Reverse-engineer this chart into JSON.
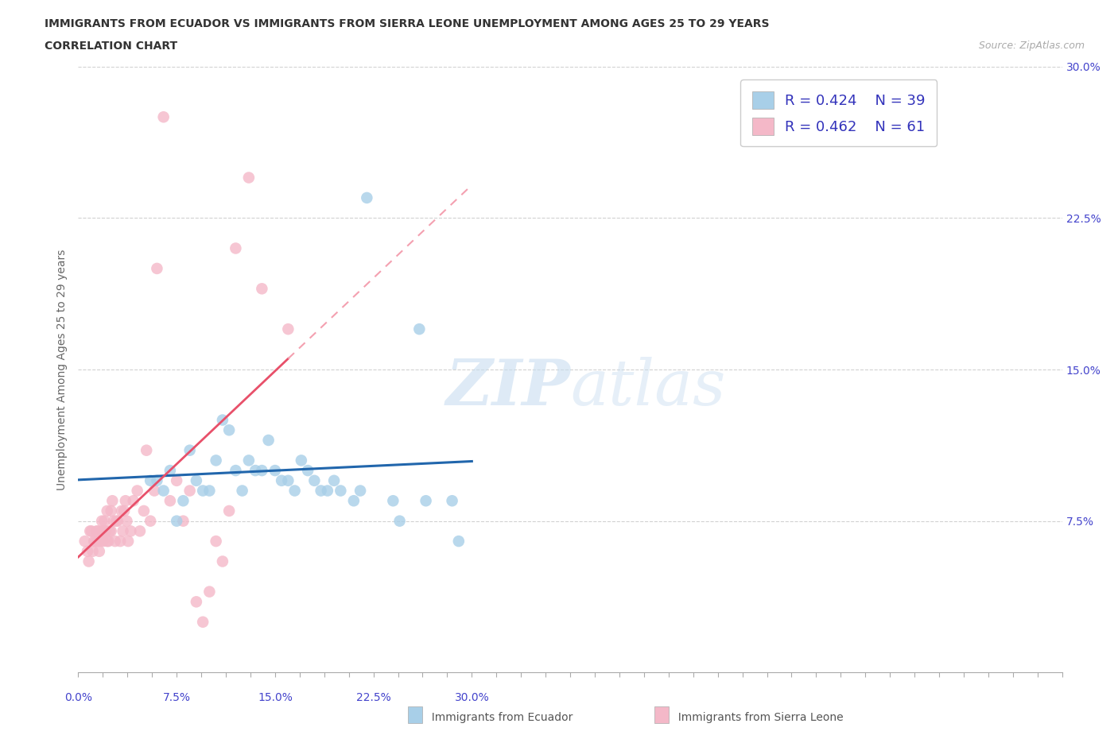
{
  "title_line1": "IMMIGRANTS FROM ECUADOR VS IMMIGRANTS FROM SIERRA LEONE UNEMPLOYMENT AMONG AGES 25 TO 29 YEARS",
  "title_line2": "CORRELATION CHART",
  "source_text": "Source: ZipAtlas.com",
  "ylabel": "Unemployment Among Ages 25 to 29 years",
  "xlim": [
    0.0,
    0.3
  ],
  "ylim": [
    0.0,
    0.3
  ],
  "xtick_labels": [
    "0.0%",
    "",
    "",
    "",
    "",
    "",
    "",
    "",
    "7.5%",
    "",
    "",
    "",
    "",
    "",
    "",
    "",
    "15.0%",
    "",
    "",
    "",
    "",
    "",
    "",
    "",
    "22.5%",
    "",
    "",
    "",
    "",
    "",
    "",
    "",
    "30.0%"
  ],
  "xtick_positions": [
    0.0,
    0.009375,
    0.01875,
    0.028125,
    0.0375,
    0.046875,
    0.05625,
    0.065625,
    0.075,
    0.084375,
    0.09375,
    0.103125,
    0.1125,
    0.121875,
    0.13125,
    0.140625,
    0.15,
    0.159375,
    0.16875,
    0.178125,
    0.1875,
    0.196875,
    0.20625,
    0.215625,
    0.225,
    0.234375,
    0.24375,
    0.253125,
    0.2625,
    0.271875,
    0.28125,
    0.290625,
    0.3
  ],
  "ytick_labels": [
    "7.5%",
    "15.0%",
    "22.5%",
    "30.0%"
  ],
  "ytick_positions": [
    0.075,
    0.15,
    0.225,
    0.3
  ],
  "ecuador_color": "#a8cfe8",
  "sierraleone_color": "#f4b8c8",
  "ecuador_line_color": "#2166ac",
  "sierraleone_line_color": "#e8506a",
  "sierraleone_dash_color": "#f4a0b0",
  "ecuador_R": 0.424,
  "ecuador_N": 39,
  "sierraleone_R": 0.462,
  "sierraleone_N": 61,
  "ecuador_x": [
    0.055,
    0.06,
    0.065,
    0.07,
    0.075,
    0.08,
    0.085,
    0.09,
    0.095,
    0.1,
    0.105,
    0.11,
    0.115,
    0.12,
    0.125,
    0.13,
    0.135,
    0.14,
    0.145,
    0.15,
    0.155,
    0.16,
    0.165,
    0.17,
    0.175,
    0.18,
    0.185,
    0.19,
    0.195,
    0.2,
    0.21,
    0.215,
    0.22,
    0.24,
    0.245,
    0.26,
    0.265,
    0.285,
    0.29
  ],
  "ecuador_y": [
    0.095,
    0.095,
    0.09,
    0.1,
    0.075,
    0.085,
    0.11,
    0.095,
    0.09,
    0.09,
    0.105,
    0.125,
    0.12,
    0.1,
    0.09,
    0.105,
    0.1,
    0.1,
    0.115,
    0.1,
    0.095,
    0.095,
    0.09,
    0.105,
    0.1,
    0.095,
    0.09,
    0.09,
    0.095,
    0.09,
    0.085,
    0.09,
    0.235,
    0.085,
    0.075,
    0.17,
    0.085,
    0.085,
    0.065
  ],
  "sierraleone_x": [
    0.005,
    0.007,
    0.008,
    0.009,
    0.01,
    0.011,
    0.012,
    0.013,
    0.014,
    0.015,
    0.015,
    0.016,
    0.017,
    0.018,
    0.018,
    0.019,
    0.02,
    0.02,
    0.021,
    0.022,
    0.022,
    0.023,
    0.024,
    0.025,
    0.025,
    0.026,
    0.027,
    0.028,
    0.029,
    0.03,
    0.032,
    0.033,
    0.034,
    0.035,
    0.036,
    0.037,
    0.038,
    0.04,
    0.042,
    0.045,
    0.047,
    0.05,
    0.052,
    0.055,
    0.058,
    0.06,
    0.065,
    0.07,
    0.075,
    0.08,
    0.085,
    0.09,
    0.095,
    0.1,
    0.105,
    0.11,
    0.115,
    0.12,
    0.13,
    0.14,
    0.16
  ],
  "sierraleone_y": [
    0.065,
    0.06,
    0.055,
    0.07,
    0.07,
    0.06,
    0.065,
    0.065,
    0.07,
    0.065,
    0.07,
    0.06,
    0.065,
    0.07,
    0.075,
    0.065,
    0.07,
    0.075,
    0.07,
    0.065,
    0.08,
    0.065,
    0.07,
    0.07,
    0.08,
    0.085,
    0.075,
    0.065,
    0.075,
    0.075,
    0.065,
    0.08,
    0.07,
    0.08,
    0.085,
    0.075,
    0.065,
    0.07,
    0.085,
    0.09,
    0.07,
    0.08,
    0.11,
    0.075,
    0.09,
    0.2,
    0.275,
    0.085,
    0.095,
    0.075,
    0.09,
    0.035,
    0.025,
    0.04,
    0.065,
    0.055,
    0.08,
    0.21,
    0.245,
    0.19,
    0.17
  ]
}
